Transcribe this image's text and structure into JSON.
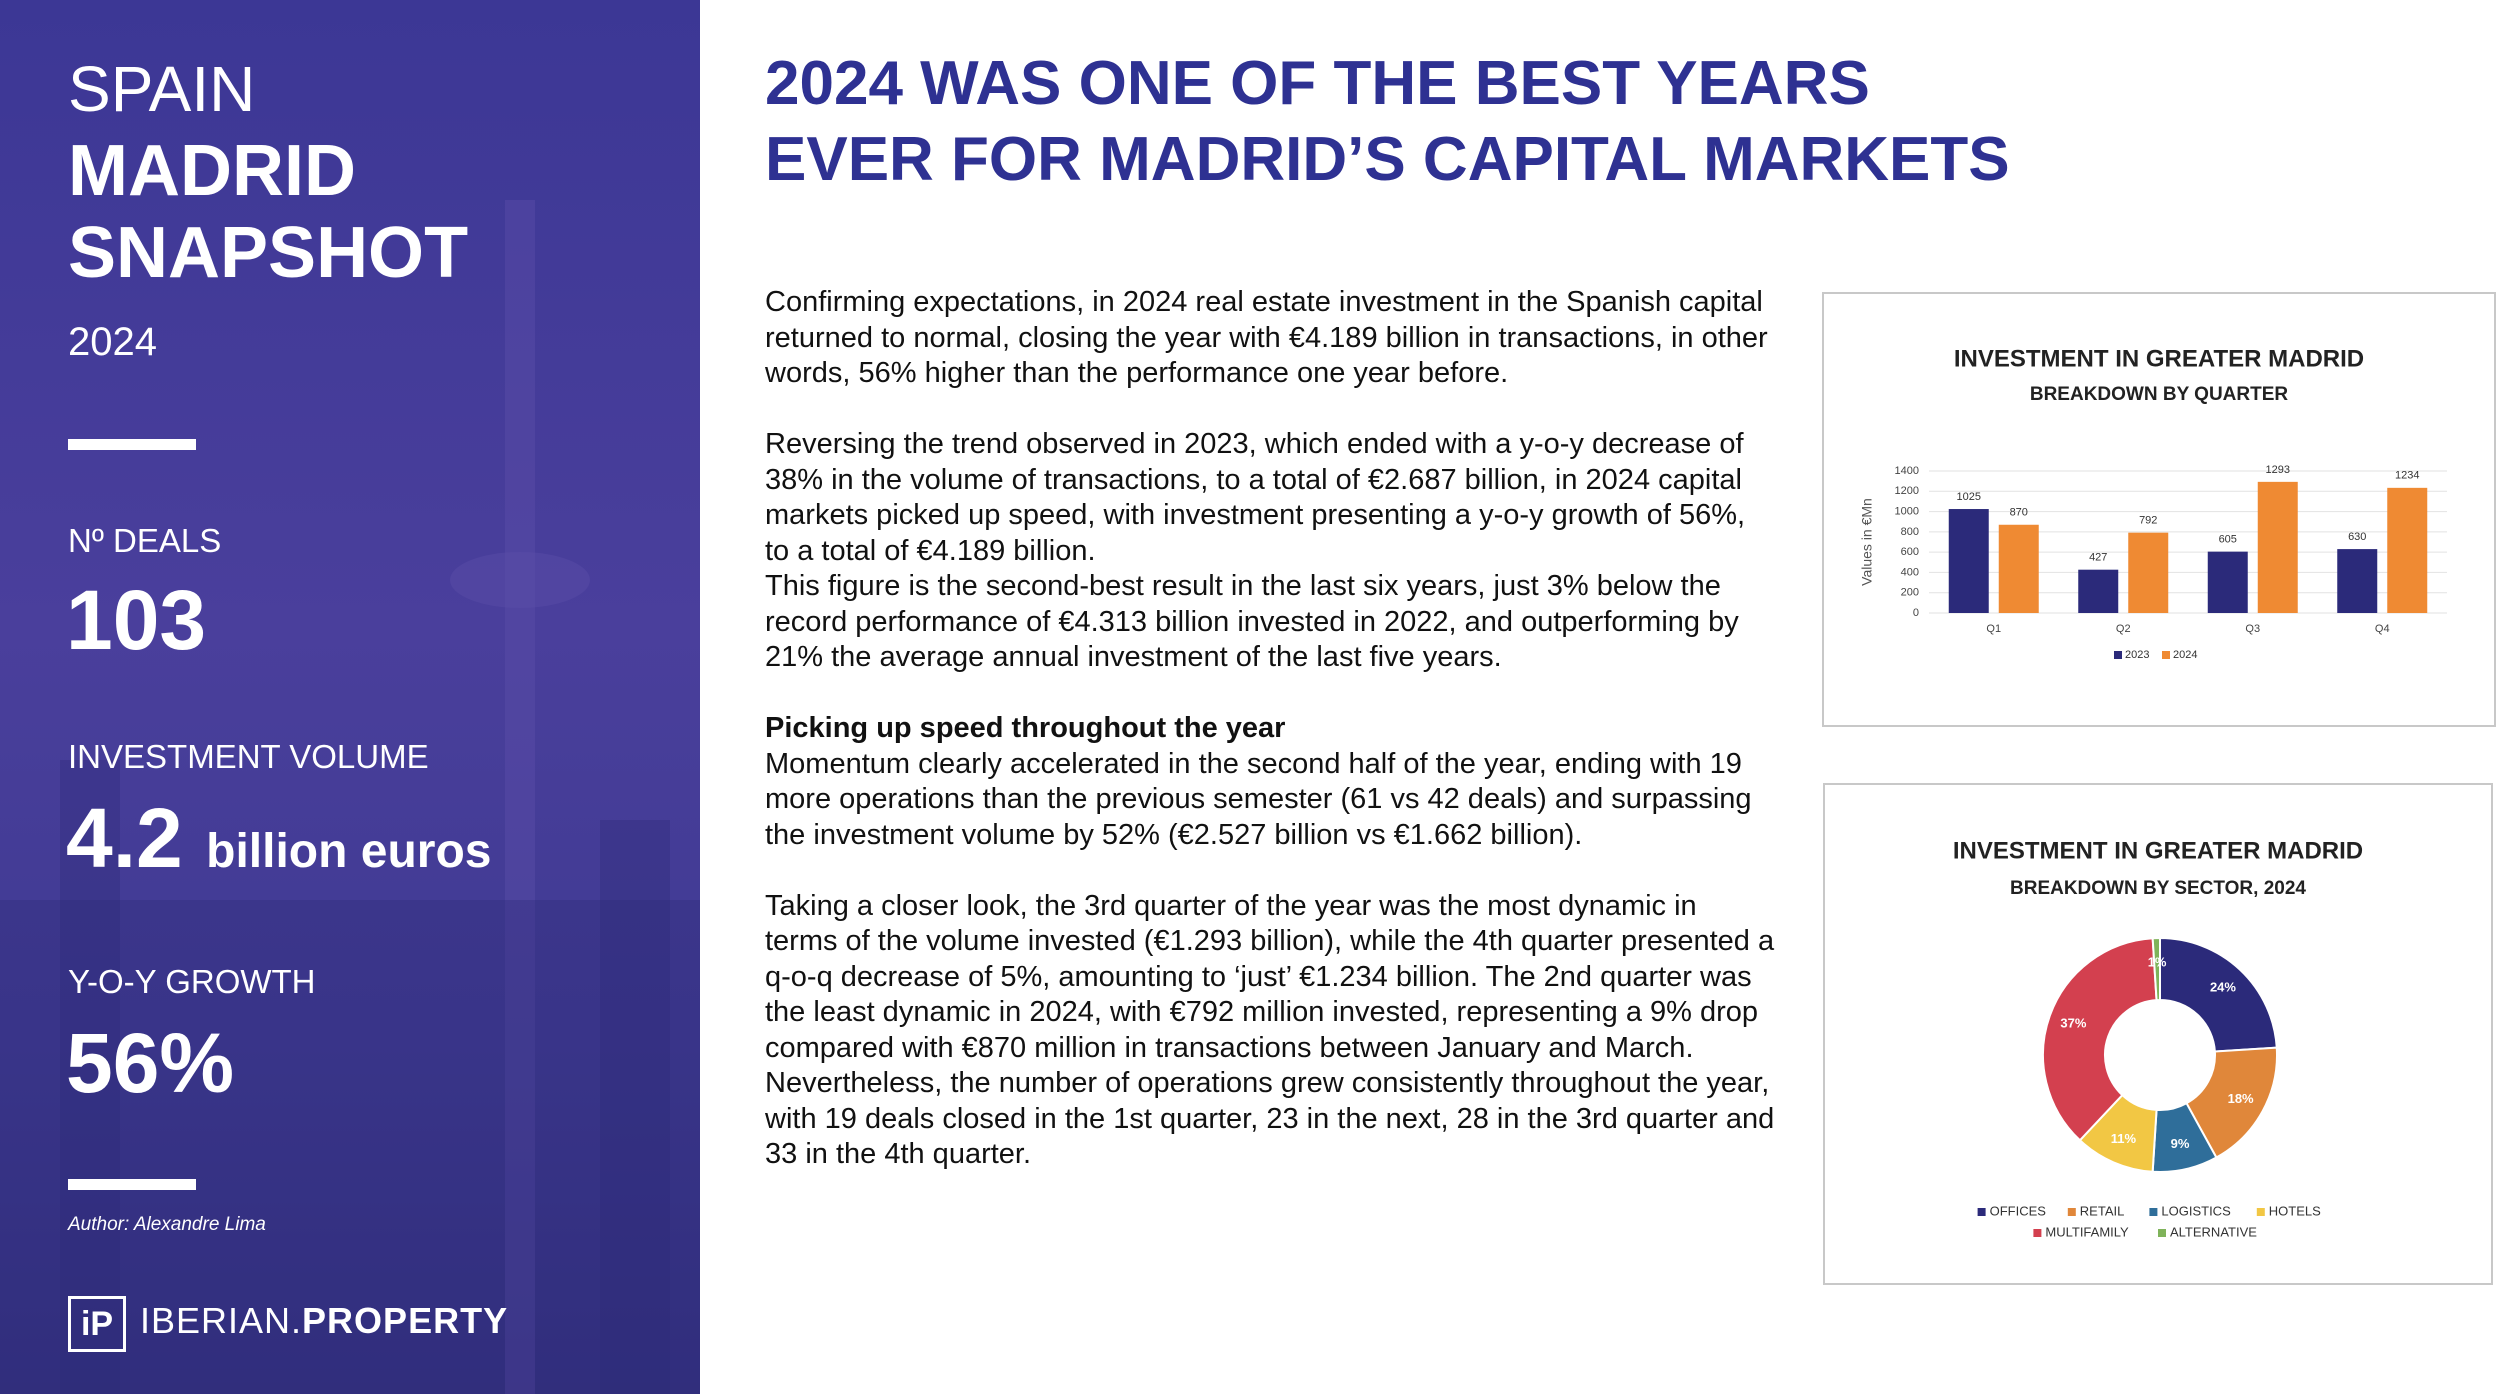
{
  "sidebar": {
    "region": "SPAIN",
    "title": "MADRID SNAPSHOT",
    "year": "2024",
    "stats": [
      {
        "label": "Nº DEALS",
        "value": "103"
      },
      {
        "label": "INVESTMENT VOLUME",
        "value": "4.2",
        "unit": "billion euros"
      },
      {
        "label": "Y-O-Y GROWTH",
        "value": "56%"
      }
    ],
    "author": "Author: Alexandre Lima",
    "logo_mark": "iP",
    "brand_light": "IBERIAN.",
    "brand_bold": "PROPERTY"
  },
  "article": {
    "title": "2024 WAS ONE OF THE BEST YEARS EVER FOR MADRID’S CAPITAL MARKETS",
    "intro": "Confirming expectations, in 2024 real estate investment in the Spanish capital returned to normal, closing the year with €4.189 billion in transactions, in other words, 56% higher than the performance one year before.",
    "trend": "Reversing the trend observed in 2023, which ended with a y-o-y decrease of 38% in the volume of transactions, to a total of €2.687 billion, in 2024 capital markets picked up speed, with investment presenting a y-o-y growth of 56%, to a total of €4.189 billion.",
    "figure": "This figure is the second-best result in the last six years, just 3% below the record performance of €4.313 billion invested in 2022, and outperforming by 21% the average annual investment of the last five years.",
    "subheading": "Picking up speed throughout the year",
    "momentum": "Momentum clearly accelerated in the second half of the year, ending with 19 more operations than the previous semester (61 vs 42 deals) and surpassing the investment volume by 52% (€2.527 billion vs €1.662 billion).",
    "closer": "Taking a closer look, the 3rd quarter of the year was the most dynamic in terms of the volume invested (€1.293 billion), while the 4th quarter presented a q-o-q decrease of 5%, amounting to ‘just’ €1.234 billion. The 2nd quarter was the least dynamic in 2024, with €792 million invested, representing a 9% drop compared with €870 million in transactions between January and March. Nevertheless, the number of operations grew consistently throughout the year, with 19 deals closed in the 1st quarter, 23 in the next, 28 in the 3rd quarter and 33 in the 4th quarter."
  },
  "chart_data": [
    {
      "type": "bar",
      "title": "INVESTMENT IN GREATER MADRID",
      "subtitle": "BREAKDOWN BY QUARTER",
      "y_label": "Values in €Mn",
      "categories": [
        "Q1",
        "Q2",
        "Q3",
        "Q4"
      ],
      "series": [
        {
          "name": "2023",
          "color": "#2b2a7a",
          "values": [
            1025,
            427,
            605,
            630
          ]
        },
        {
          "name": "2024",
          "color": "#ef8a33",
          "values": [
            870,
            792,
            1293,
            1234
          ]
        }
      ],
      "ylim": [
        0,
        1400
      ],
      "yticks": [
        0,
        200,
        400,
        600,
        800,
        1000,
        1200,
        1400
      ],
      "grid": true,
      "legend": "bottom"
    },
    {
      "type": "donut",
      "title": "INVESTMENT IN GREATER MADRID",
      "subtitle": "BREAKDOWN BY SECTOR, 2024",
      "categories": [
        "OFFICES",
        "RETAIL",
        "LOGISTICS",
        "HOTELS",
        "MULTIFAMILY",
        "ALTERNATIVE"
      ],
      "values": [
        24,
        18,
        9,
        11,
        37,
        1
      ],
      "value_labels": [
        "24%",
        "18%",
        "9%",
        "11%",
        "37%",
        "1%"
      ],
      "colors": [
        "#2b2a7a",
        "#e0873a",
        "#2f6e9a",
        "#f2c744",
        "#d3404f",
        "#7fb35a"
      ],
      "legend": "bottom"
    }
  ]
}
